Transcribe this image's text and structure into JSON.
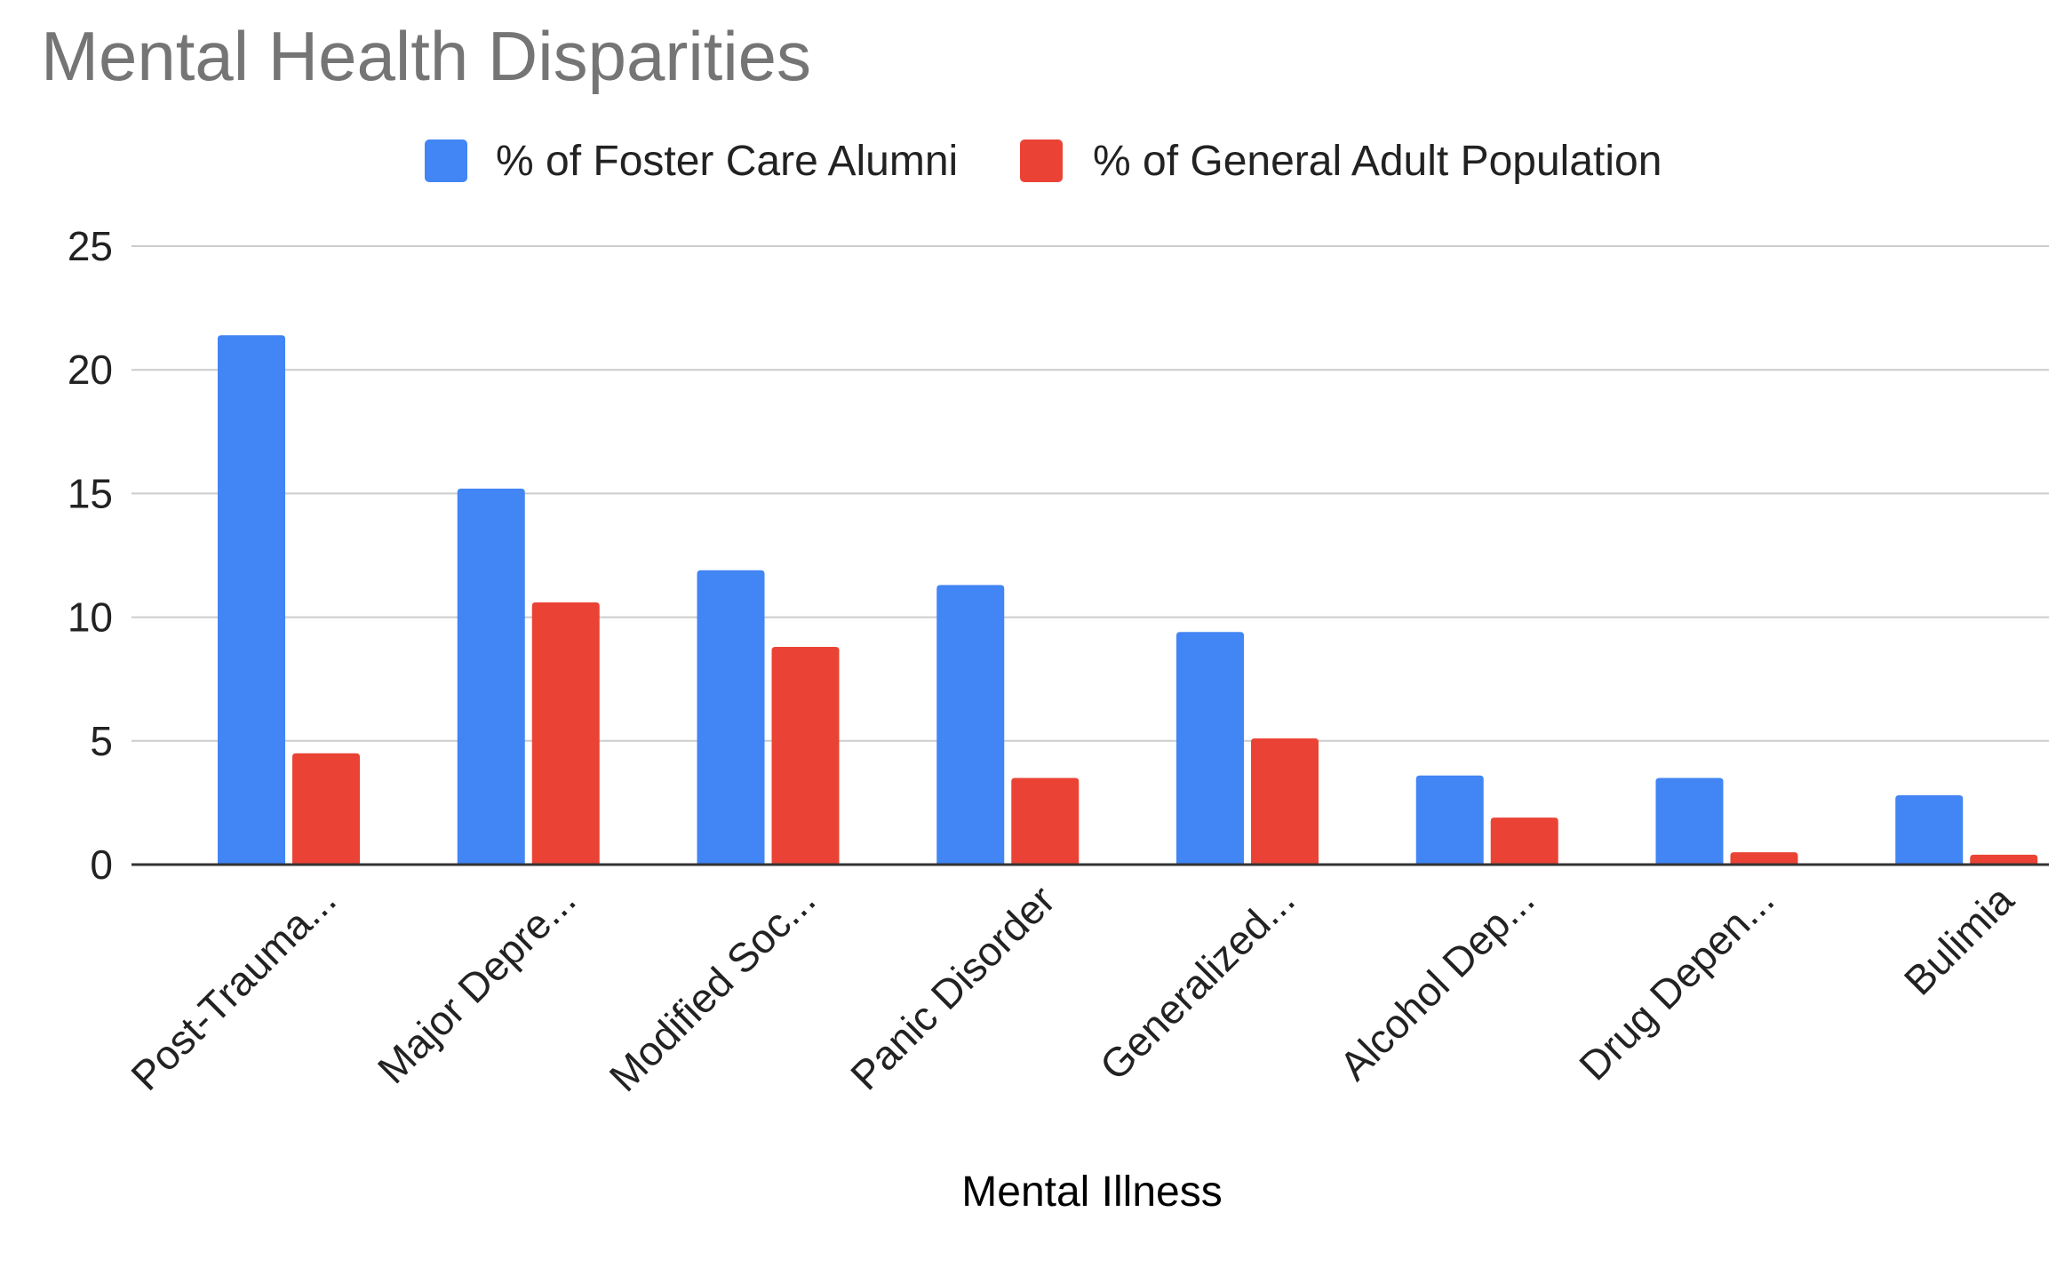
{
  "chart_data": {
    "type": "bar",
    "title": "Mental Health Disparities",
    "xlabel": "Mental Illness",
    "ylabel": "",
    "ylim": [
      0,
      25
    ],
    "yticks": [
      "0",
      "5",
      "10",
      "15",
      "20",
      "25"
    ],
    "ytick_values": [
      0,
      5,
      10,
      15,
      20,
      25
    ],
    "grid": true,
    "legend_position": "top",
    "categories": [
      "Post-Trauma...",
      "Major Depre...",
      "Modified Soc...",
      "Panic Disorder",
      "Generalized...",
      "Alcohol Dep...",
      "Drug Depen...",
      "Bulimia"
    ],
    "series": [
      {
        "name": "% of Foster Care Alumni",
        "color": "#4285f4",
        "values": [
          21.4,
          15.2,
          11.9,
          11.3,
          9.4,
          3.6,
          3.5,
          2.8
        ]
      },
      {
        "name": "% of General Adult Population",
        "color": "#ea4335",
        "values": [
          4.5,
          10.6,
          8.8,
          3.5,
          5.1,
          1.9,
          0.5,
          0.4
        ]
      }
    ],
    "gridline_color": "#cccccc",
    "axis_color": "#333333"
  }
}
